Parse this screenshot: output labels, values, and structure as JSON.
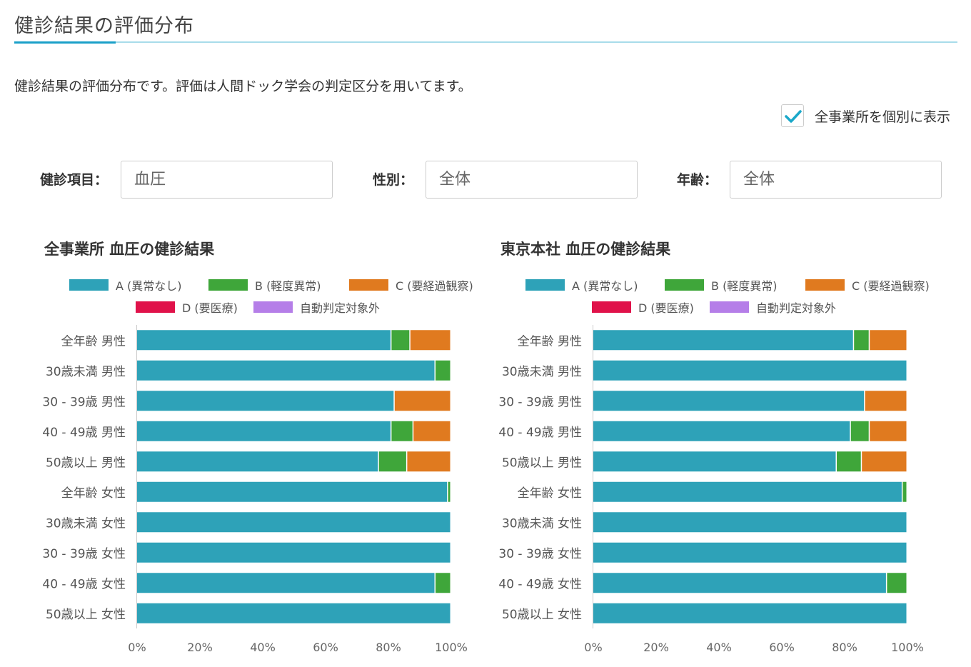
{
  "header": {
    "title": "健診結果の評価分布",
    "description": "健診結果の評価分布です。評価は人間ドック学会の判定区分を用いてます。"
  },
  "options": {
    "show_all_offices_label": "全事業所を個別に表示",
    "checked": true
  },
  "filters": {
    "item_label": "健診項目：",
    "item_value": "血圧",
    "gender_label": "性別：",
    "gender_value": "全体",
    "age_label": "年齢：",
    "age_value": "全体"
  },
  "legend": [
    {
      "label": "A (異常なし)",
      "color": "#2ea2b8"
    },
    {
      "label": "B (軽度異常)",
      "color": "#3fa63a"
    },
    {
      "label": "C (要経過観察)",
      "color": "#e07a1f"
    },
    {
      "label": "D (要医療)",
      "color": "#e0124a"
    },
    {
      "label": "自動判定対象外",
      "color": "#b57ee8"
    }
  ],
  "chart_data": [
    {
      "type": "bar",
      "orientation": "horizontal",
      "stacked": true,
      "title": "全事業所 血圧の健診結果",
      "categories": [
        "全年齢 男性",
        "30歳未満 男性",
        "30 - 39歳 男性",
        "40 - 49歳 男性",
        "50歳以上 男性",
        "全年齢 女性",
        "30歳未満 女性",
        "30 - 39歳 女性",
        "40 - 49歳 女性",
        "50歳以上 女性"
      ],
      "series": [
        {
          "name": "A (異常なし)",
          "values": [
            81,
            95,
            82,
            81,
            77,
            99,
            100,
            100,
            95,
            100
          ]
        },
        {
          "name": "B (軽度異常)",
          "values": [
            6,
            5,
            0,
            7,
            9,
            1,
            0,
            0,
            5,
            0
          ]
        },
        {
          "name": "C (要経過観察)",
          "values": [
            13,
            0,
            18,
            12,
            14,
            0,
            0,
            0,
            0,
            0
          ]
        },
        {
          "name": "D (要医療)",
          "values": [
            0,
            0,
            0,
            0,
            0,
            0,
            0,
            0,
            0,
            0
          ]
        },
        {
          "name": "自動判定対象外",
          "values": [
            0,
            0,
            0,
            0,
            0,
            0,
            0,
            0,
            0,
            0
          ]
        }
      ],
      "xlim": [
        0,
        100
      ],
      "xticks": [
        "0%",
        "20%",
        "40%",
        "60%",
        "80%",
        "100%"
      ],
      "legend_position": "top"
    },
    {
      "type": "bar",
      "orientation": "horizontal",
      "stacked": true,
      "title": "東京本社 血圧の健診結果",
      "categories": [
        "全年齢 男性",
        "30歳未満 男性",
        "30 - 39歳 男性",
        "40 - 49歳 男性",
        "50歳以上 男性",
        "全年齢 女性",
        "30歳未満 女性",
        "30 - 39歳 女性",
        "40 - 49歳 女性",
        "50歳以上 女性"
      ],
      "series": [
        {
          "name": "A (異常なし)",
          "values": [
            83,
            100,
            86.5,
            82,
            77.5,
            98.5,
            100,
            100,
            93.5,
            100
          ]
        },
        {
          "name": "B (軽度異常)",
          "values": [
            5,
            0,
            0,
            6,
            8,
            1.5,
            0,
            0,
            6.5,
            0
          ]
        },
        {
          "name": "C (要経過観察)",
          "values": [
            12,
            0,
            13.5,
            12,
            14.5,
            0,
            0,
            0,
            0,
            0
          ]
        },
        {
          "name": "D (要医療)",
          "values": [
            0,
            0,
            0,
            0,
            0,
            0,
            0,
            0,
            0,
            0
          ]
        },
        {
          "name": "自動判定対象外",
          "values": [
            0,
            0,
            0,
            0,
            0,
            0,
            0,
            0,
            0,
            0
          ]
        }
      ],
      "xlim": [
        0,
        100
      ],
      "xticks": [
        "0%",
        "20%",
        "40%",
        "60%",
        "80%",
        "100%"
      ],
      "legend_position": "top"
    }
  ]
}
